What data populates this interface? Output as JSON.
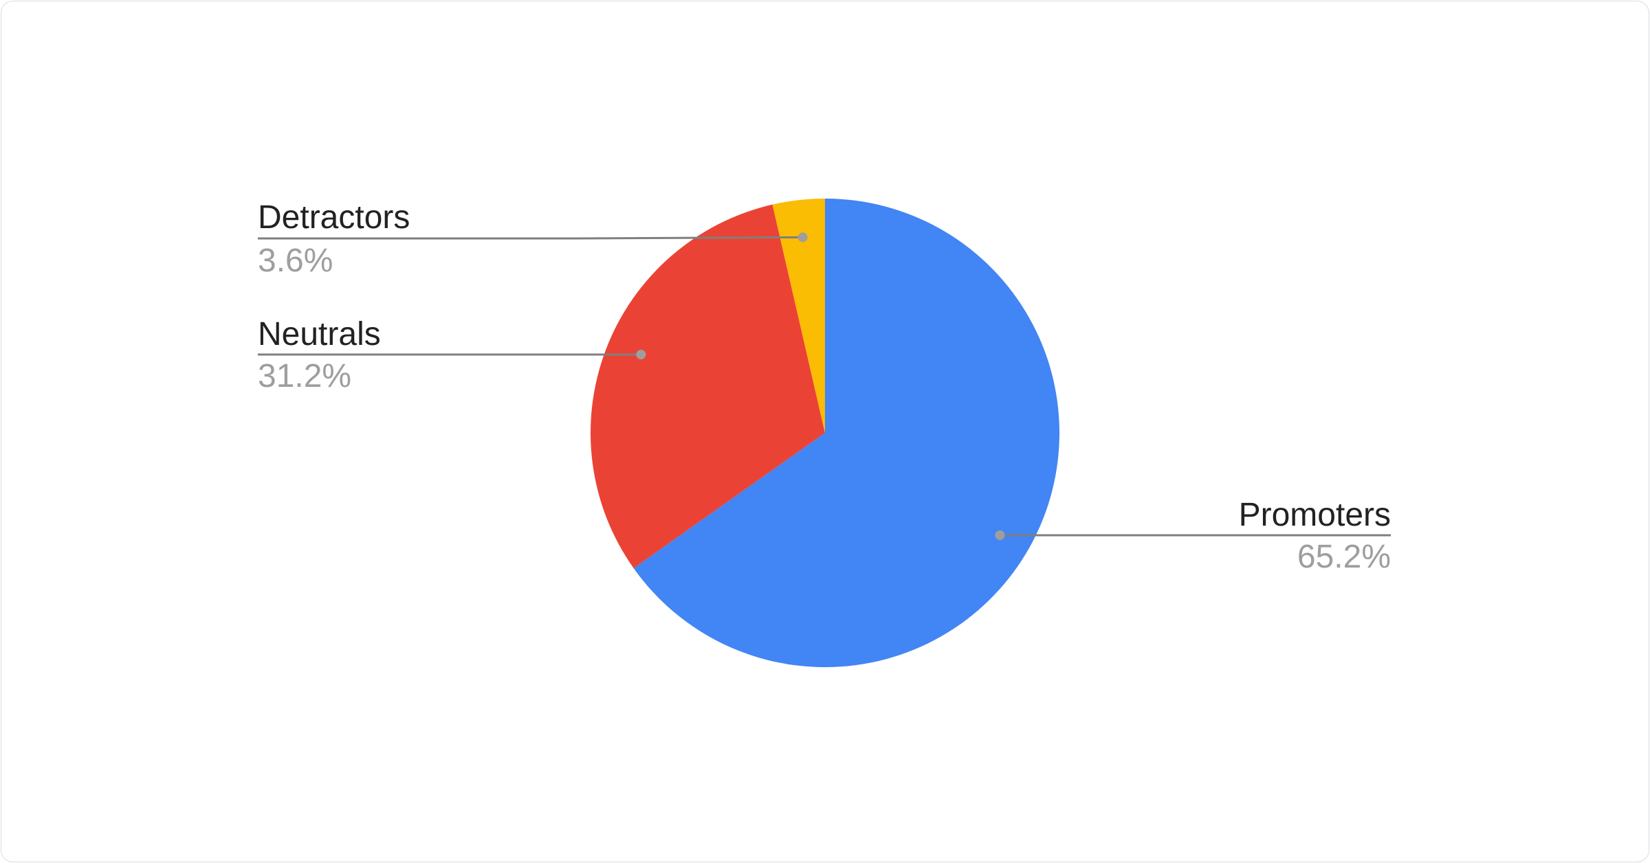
{
  "chart_data": {
    "type": "pie",
    "title": "",
    "start_angle": "top, clockwise",
    "slices": [
      {
        "label": "Promoters",
        "value": 65.2,
        "display": "65.2%",
        "color": "#4285F4"
      },
      {
        "label": "Neutrals",
        "value": 31.2,
        "display": "31.2%",
        "color": "#EA4335"
      },
      {
        "label": "Detractors",
        "value": 3.6,
        "display": "3.6%",
        "color": "#FBBC04"
      }
    ],
    "label_style": "outside labels with leader lines",
    "legend": "none"
  }
}
